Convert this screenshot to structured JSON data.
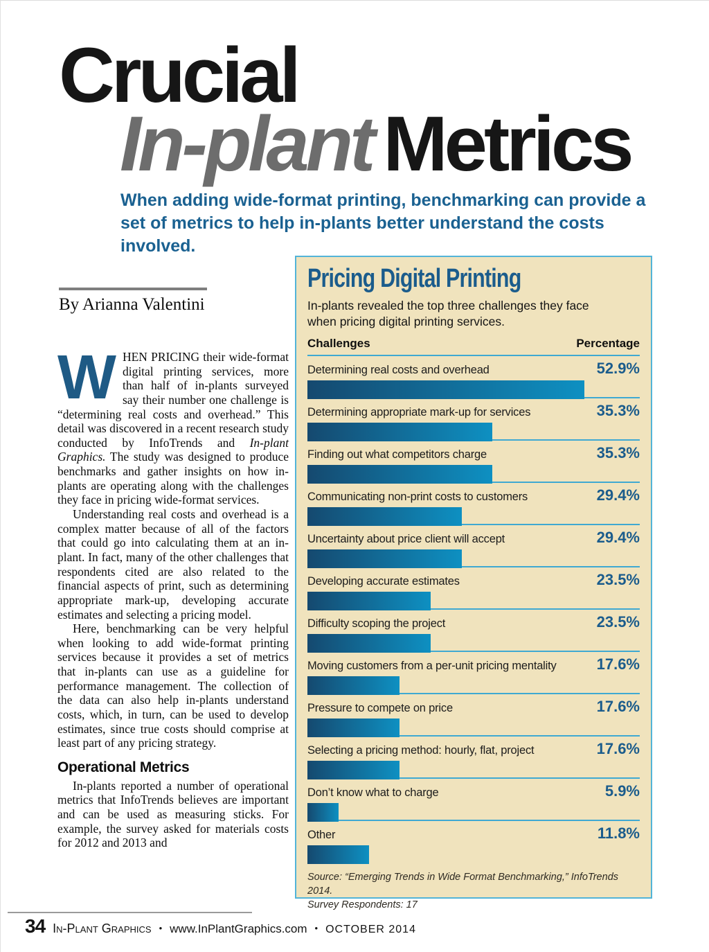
{
  "page": {
    "title": {
      "line1": "Crucial",
      "line2_italic": "In-plant",
      "line2_rest": "Metrics"
    },
    "subtitle": "When adding wide-format printing, benchmarking can provide a set of metrics to help in-plants better understand the costs involved.",
    "byline": "By Arianna Valentini"
  },
  "article": {
    "dropcap": "W",
    "para1_a": "HEN PRICING their wide-format digital printing services, more than half of in-plants surveyed say their number one challenge is “determining real costs and overhead.” This detail was discovered in a recent research study conducted by InfoTrends and ",
    "para1_italic": "In-plant Graphics.",
    "para1_b": " The study was designed to produce benchmarks and gather insights on how in-plants are operating along with the challenges they face in pricing wide-format services.",
    "para2": "Understanding real costs and overhead is a complex matter because of all of the factors that could go into calculating them at an in-plant. In fact, many of the other challenges that respondents cited are also related to the financial aspects of print, such as determining appropriate mark-up, developing accurate estimates and selecting a pricing model.",
    "para3": "Here, benchmarking can be very helpful when looking to add wide-format printing services because it provides a set of metrics that in-plants can use as a guideline for performance management. The collection of the data can also help in-plants understand costs, which, in turn, can be used to develop estimates, since true costs should comprise at least part of any pricing strategy.",
    "heading2": "Operational Metrics",
    "para4": "In-plants reported a number of operational metrics that InfoTrends believes are important and can be used as measuring sticks. For example, the survey asked for materials costs for 2012 and 2013 and"
  },
  "chart_data": {
    "type": "bar",
    "orientation": "horizontal",
    "title": "Pricing Digital Printing",
    "subtitle": "In-plants revealed the top three challenges they face when pricing digital printing services.",
    "col_challenges": "Challenges",
    "col_percentage": "Percentage",
    "unit": "%",
    "xlim": [
      0,
      63.4
    ],
    "categories": [
      "Determining real costs and overhead",
      "Determining appropriate mark-up for services",
      "Finding out what competitors charge",
      "Communicating non-print costs to customers",
      "Uncertainty about price client will accept",
      "Developing accurate estimates",
      "Difficulty scoping the project",
      "Moving customers from a per-unit pricing mentality",
      "Pressure to compete on price",
      "Selecting a pricing method: hourly, flat, project",
      "Don’t know what to charge",
      "Other"
    ],
    "values": [
      52.9,
      35.3,
      35.3,
      29.4,
      29.4,
      23.5,
      23.5,
      17.6,
      17.6,
      17.6,
      5.9,
      11.8
    ],
    "rows": [
      {
        "label": "Determining real costs and overhead",
        "value": 52.9,
        "display": "52.9%"
      },
      {
        "label": "Determining appropriate mark-up for services",
        "value": 35.3,
        "display": "35.3%"
      },
      {
        "label": "Finding out what competitors charge",
        "value": 35.3,
        "display": "35.3%"
      },
      {
        "label": "Communicating non-print costs to customers",
        "value": 29.4,
        "display": "29.4%"
      },
      {
        "label": "Uncertainty about price client will accept",
        "value": 29.4,
        "display": "29.4%"
      },
      {
        "label": "Developing accurate estimates",
        "value": 23.5,
        "display": "23.5%"
      },
      {
        "label": "Difficulty scoping the project",
        "value": 23.5,
        "display": "23.5%"
      },
      {
        "label": "Moving customers from a per-unit pricing mentality",
        "value": 17.6,
        "display": "17.6%"
      },
      {
        "label": "Pressure to compete on price",
        "value": 17.6,
        "display": "17.6%"
      },
      {
        "label": "Selecting a pricing method: hourly, flat, project",
        "value": 17.6,
        "display": "17.6%"
      },
      {
        "label": "Don’t know what to charge",
        "value": 5.9,
        "display": "5.9%"
      },
      {
        "label": "Other",
        "value": 11.8,
        "display": "11.8%"
      }
    ],
    "source_line1": "Source: “Emerging Trends in Wide Format Benchmarking,”  InfoTrends 2014.",
    "source_line2": "Survey Respondents: 17"
  },
  "footer": {
    "page_number": "34",
    "magazine": "In-Plant Graphics",
    "bullet": "•",
    "url": "www.InPlantGraphics.com",
    "date": "OCTOBER 2014"
  },
  "colors": {
    "accent_blue": "#1b5c8c",
    "subtitle_blue": "#1a6191",
    "title_gray": "#6d6d6d",
    "chart_bg": "#f0e3bd",
    "chart_border": "#52b4d8",
    "separator_blue": "#3fa9d2",
    "bar_gradient_start": "#15496f",
    "bar_gradient_end": "#0e90c2"
  }
}
